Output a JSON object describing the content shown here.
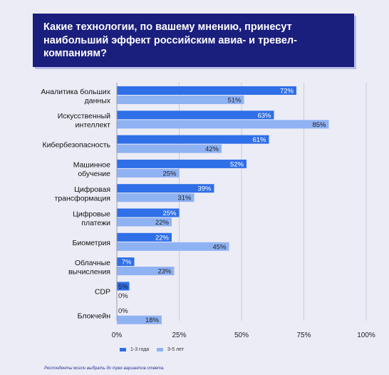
{
  "title": "Какие технологии, по вашему мнению, принесут наибольший эффект российским авиа- и тревел-компаниям?",
  "footnote": "Респонденты могли выбрать до трех вариантов ответа.",
  "colors": {
    "series1": "#2f6fe8",
    "series2": "#8fb2f3",
    "title_bg": "#1a1e7d"
  },
  "chart_data": {
    "type": "bar",
    "orientation": "horizontal",
    "categories": [
      [
        "Аналитика больших",
        "данных"
      ],
      [
        "Искусственный",
        "интеллект"
      ],
      [
        "Кибербезопасность"
      ],
      [
        "Машинное",
        "обучение"
      ],
      [
        "Цифровая",
        "трансформация"
      ],
      [
        "Цифровые",
        "платежи"
      ],
      [
        "Биометрия"
      ],
      [
        "Облачные",
        "вычисления"
      ],
      [
        "CDP"
      ],
      [
        "Блокчейн"
      ]
    ],
    "series": [
      {
        "name": "1-3 года",
        "values": [
          72,
          63,
          61,
          52,
          39,
          25,
          22,
          7,
          5,
          0
        ]
      },
      {
        "name": "3-5 лет",
        "values": [
          51,
          85,
          42,
          25,
          31,
          22,
          45,
          23,
          0,
          18
        ]
      }
    ],
    "xlim": [
      0,
      100
    ],
    "xticks": [
      "0%",
      "25%",
      "50%",
      "75%",
      "100%"
    ],
    "value_suffix": "%",
    "grid": true,
    "legend_position": "bottom"
  }
}
